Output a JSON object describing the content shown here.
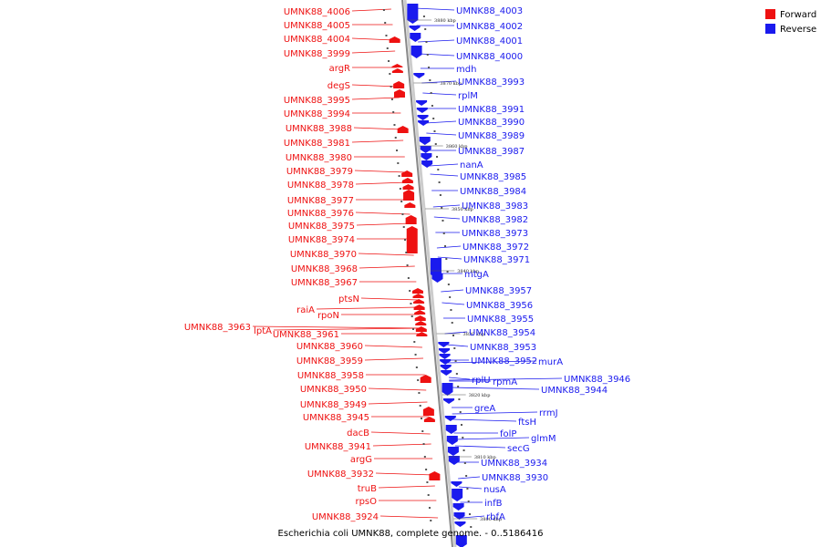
{
  "caption": "Escherichia coli UMNK88, complete genome. - 0..5186416",
  "colors": {
    "forward": "#ee1111",
    "reverse": "#1a1aee",
    "backbone": "#888888",
    "leader": "#444444"
  },
  "legend": [
    {
      "label": "Forward",
      "color": "#ee1111"
    },
    {
      "label": "Reverse",
      "color": "#1a1aee"
    }
  ],
  "ticks": [
    "3880 kbp",
    "3870 kbp",
    "3860 kbp",
    "3850 kbp",
    "3840 kbp",
    "3830 kbp",
    "3820 kbp",
    "3810 kbp",
    "3800 kbp"
  ],
  "forward_labels": [
    "UMNK88_4006",
    "UMNK88_4005",
    "UMNK88_4004",
    "UMNK88_3999",
    "argR",
    "degS",
    "UMNK88_3995",
    "UMNK88_3994",
    "UMNK88_3988",
    "UMNK88_3981",
    "UMNK88_3980",
    "UMNK88_3979",
    "UMNK88_3978",
    "UMNK88_3977",
    "UMNK88_3976",
    "UMNK88_3975",
    "UMNK88_3974",
    "UMNK88_3970",
    "UMNK88_3968",
    "UMNK88_3967",
    "ptsN",
    "raiA",
    "rpoN",
    "UMNK88_3963",
    "lptA",
    "UMNK88_3961",
    "UMNK88_3960",
    "UMNK88_3959",
    "UMNK88_3958",
    "UMNK88_3950",
    "UMNK88_3949",
    "UMNK88_3945",
    "dacB",
    "UMNK88_3941",
    "argG",
    "UMNK88_3932",
    "truB",
    "rpsO",
    "UMNK88_3924"
  ],
  "reverse_labels": [
    "UMNK88_4003",
    "UMNK88_4002",
    "UMNK88_4001",
    "UMNK88_4000",
    "mdh",
    "UMNK88_3993",
    "rplM",
    "UMNK88_3991",
    "UMNK88_3990",
    "UMNK88_3989",
    "UMNK88_3987",
    "nanA",
    "UMNK88_3985",
    "UMNK88_3984",
    "UMNK88_3983",
    "UMNK88_3982",
    "UMNK88_3973",
    "UMNK88_3972",
    "UMNK88_3971",
    "mtgA",
    "UMNK88_3957",
    "UMNK88_3956",
    "UMNK88_3955",
    "UMNK88_3954",
    "UMNK88_3953",
    "UMNK88_3952",
    "murA",
    "rplU",
    "rpmA",
    "UMNK88_3946",
    "UMNK88_3944",
    "greA",
    "rrmJ",
    "ftsH",
    "folP",
    "glmM",
    "secG",
    "UMNK88_3934",
    "UMNK88_3930",
    "nusA",
    "infB",
    "rbfA"
  ]
}
